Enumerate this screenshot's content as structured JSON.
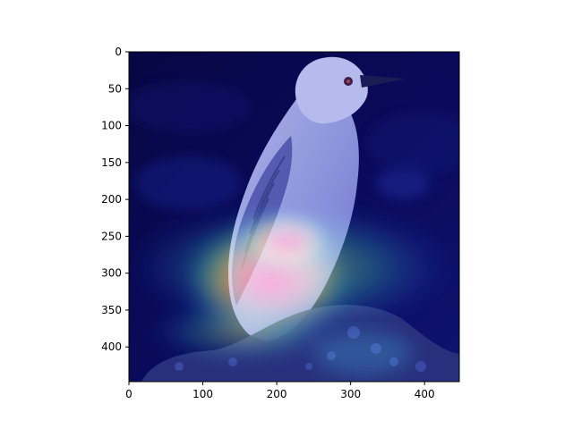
{
  "figure": {
    "description_kind": "image-with-heatmap-overlay",
    "subject": "bird",
    "heatmap_colormap": "jet",
    "colors": {
      "background": "#0a0a5a",
      "hot": "#ff3b1f",
      "warm": "#ffb000",
      "mid": "#3cd36a",
      "cool": "#2a6bff"
    }
  },
  "axes": {
    "x_ticks": [
      "0",
      "100",
      "200",
      "300",
      "400"
    ],
    "x_values": [
      0,
      100,
      200,
      300,
      400
    ],
    "y_ticks": [
      "0",
      "50",
      "100",
      "150",
      "200",
      "250",
      "300",
      "350",
      "400"
    ],
    "y_values": [
      0,
      50,
      100,
      150,
      200,
      250,
      300,
      350,
      400
    ],
    "x_range": [
      0,
      447
    ],
    "y_range": [
      0,
      447
    ]
  }
}
